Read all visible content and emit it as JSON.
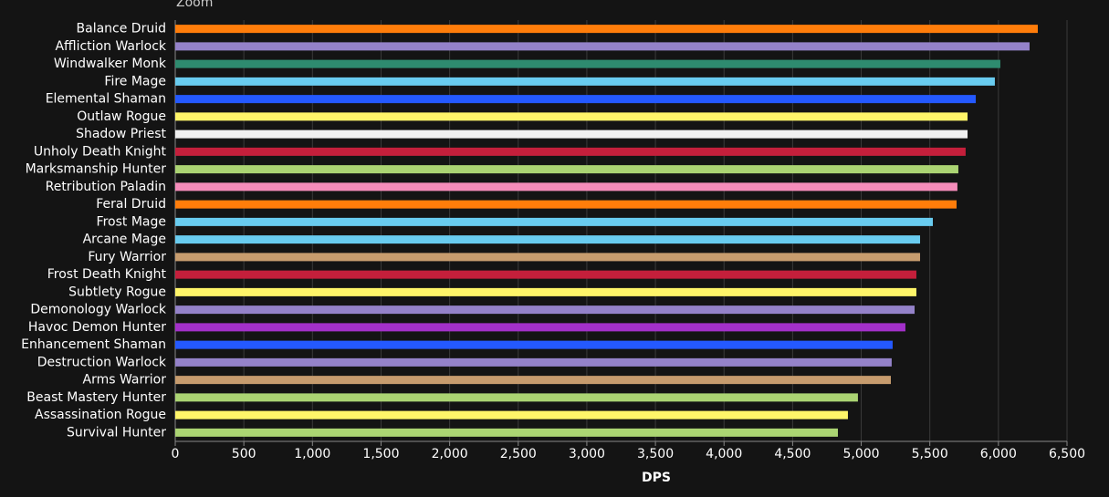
{
  "chart_data": {
    "type": "hbar",
    "zoom_label": "Zoom",
    "x_label": "DPS",
    "categories": [
      "Balance Druid",
      "Affliction Warlock",
      "Windwalker Monk",
      "Fire Mage",
      "Elemental Shaman",
      "Outlaw Rogue",
      "Shadow Priest",
      "Unholy Death Knight",
      "Marksmanship Hunter",
      "Retribution Paladin",
      "Feral Druid",
      "Frost Mage",
      "Arcane Mage",
      "Fury Warrior",
      "Frost Death Knight",
      "Subtlety Rogue",
      "Demonology Warlock",
      "Havoc Demon Hunter",
      "Enhancement Shaman",
      "Destruction Warlock",
      "Arms Warrior",
      "Beast Mastery Hunter",
      "Assassination Rogue",
      "Survival Hunter"
    ],
    "values": [
      6287,
      6227,
      6014,
      5974,
      5835,
      5775,
      5775,
      5761,
      5708,
      5701,
      5695,
      5522,
      5429,
      5429,
      5402,
      5402,
      5389,
      5322,
      5229,
      5222,
      5216,
      4976,
      4903,
      4830
    ],
    "colors": [
      "#ff7d0a",
      "#9482c9",
      "#2e8b6f",
      "#69ccf0",
      "#2459ff",
      "#fff569",
      "#f0f0f0",
      "#c41f3b",
      "#abd473",
      "#f58cba",
      "#ff7d0a",
      "#69ccf0",
      "#69ccf0",
      "#c79c6e",
      "#c41f3b",
      "#fff569",
      "#9482c9",
      "#a330c9",
      "#2459ff",
      "#9482c9",
      "#c79c6e",
      "#abd473",
      "#fff569",
      "#abd473"
    ],
    "xlim": [
      0,
      6500
    ],
    "xticks": [
      0,
      500,
      {
        "value": 1000,
        "label": "1,000"
      },
      {
        "value": 1500,
        "label": "1,500"
      },
      {
        "value": 2000,
        "label": "2,000"
      },
      {
        "value": 2500,
        "label": "2,500"
      },
      {
        "value": 3000,
        "label": "3,000"
      },
      {
        "value": 3500,
        "label": "3,500"
      },
      {
        "value": 4000,
        "label": "4,000"
      },
      {
        "value": 4500,
        "label": "4,500"
      },
      {
        "value": 5000,
        "label": "5,000"
      },
      {
        "value": 5500,
        "label": "5,500"
      },
      {
        "value": 6000,
        "label": "6,000"
      },
      {
        "value": 6500,
        "label": "6,500"
      }
    ],
    "grid": true
  }
}
